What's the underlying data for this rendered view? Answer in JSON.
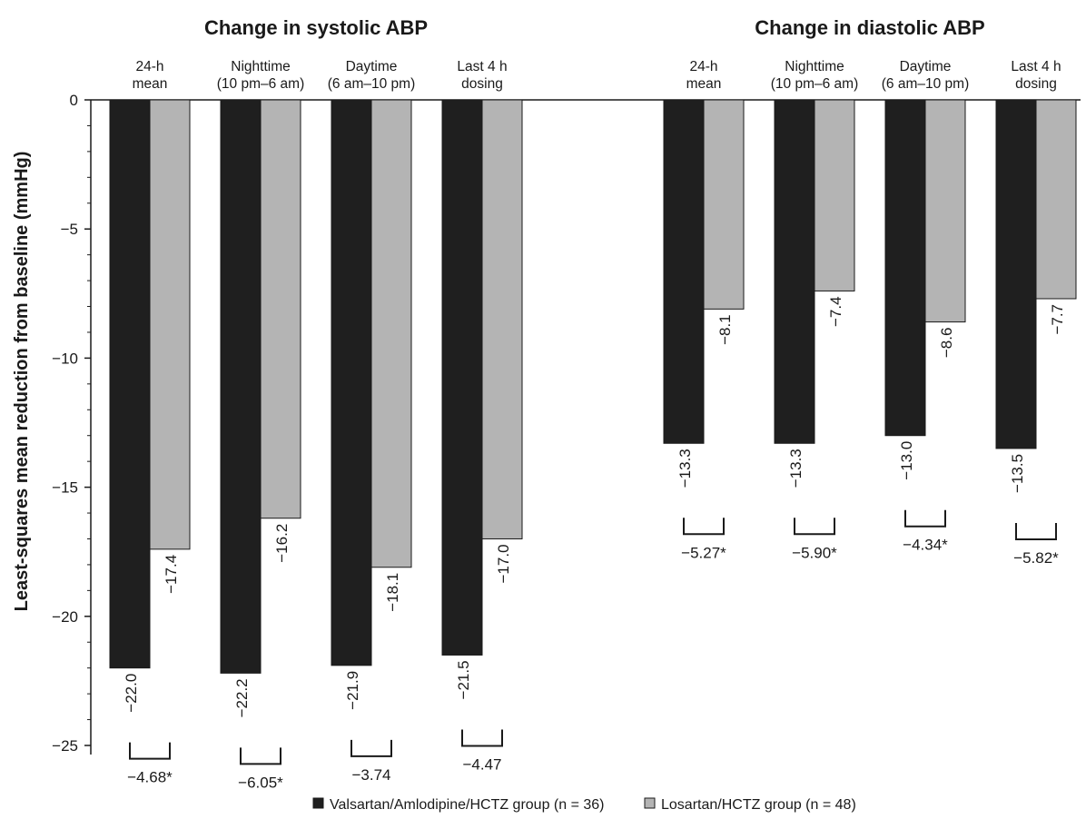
{
  "chart_data": {
    "type": "bar",
    "ylabel": "Least-squares mean reduction from baseline (mmHg)",
    "ylim": [
      -25,
      0
    ],
    "yticks": [
      0,
      -5,
      -10,
      -15,
      -20,
      -25
    ],
    "ytick_labels": [
      "0",
      "−5",
      "−10",
      "−15",
      "−20",
      "−25"
    ],
    "series_colors": [
      "#1f1f1f",
      "#b4b4b4"
    ],
    "panels": [
      {
        "title": "Change in systolic ABP",
        "groups": [
          {
            "label": [
              "24-h",
              "mean"
            ],
            "values": [
              -22.0,
              -17.4
            ],
            "value_labels": [
              "−22.0",
              "−17.4"
            ],
            "diff": "−4.68*"
          },
          {
            "label": [
              "Nighttime",
              "(10 pm–6 am)"
            ],
            "values": [
              -22.2,
              -16.2
            ],
            "value_labels": [
              "−22.2",
              "−16.2"
            ],
            "diff": "−6.05*"
          },
          {
            "label": [
              "Daytime",
              "(6 am–10 pm)"
            ],
            "values": [
              -21.9,
              -18.1
            ],
            "value_labels": [
              "−21.9",
              "−18.1"
            ],
            "diff": "−3.74"
          },
          {
            "label": [
              "Last 4 h",
              "dosing"
            ],
            "values": [
              -21.5,
              -17.0
            ],
            "value_labels": [
              "−21.5",
              "−17.0"
            ],
            "diff": "−4.47"
          }
        ]
      },
      {
        "title": "Change in diastolic ABP",
        "groups": [
          {
            "label": [
              "24-h",
              "mean"
            ],
            "values": [
              -13.3,
              -8.1
            ],
            "value_labels": [
              "−13.3",
              "−8.1"
            ],
            "diff": "−5.27*"
          },
          {
            "label": [
              "Nighttime",
              "(10 pm–6 am)"
            ],
            "values": [
              -13.3,
              -7.4
            ],
            "value_labels": [
              "−13.3",
              "−7.4"
            ],
            "diff": "−5.90*"
          },
          {
            "label": [
              "Daytime",
              "(6 am–10 pm)"
            ],
            "values": [
              -13.0,
              -8.6
            ],
            "value_labels": [
              "−13.0",
              "−8.6"
            ],
            "diff": "−4.34*"
          },
          {
            "label": [
              "Last 4 h",
              "dosing"
            ],
            "values": [
              -13.5,
              -7.7
            ],
            "value_labels": [
              "−13.5",
              "−7.7"
            ],
            "diff": "−5.82*"
          }
        ]
      }
    ],
    "legend": [
      "Valsartan/Amlodipine/HCTZ group (n = 36)",
      "Losartan/HCTZ group (n = 48)"
    ],
    "legend_position": "bottom"
  }
}
